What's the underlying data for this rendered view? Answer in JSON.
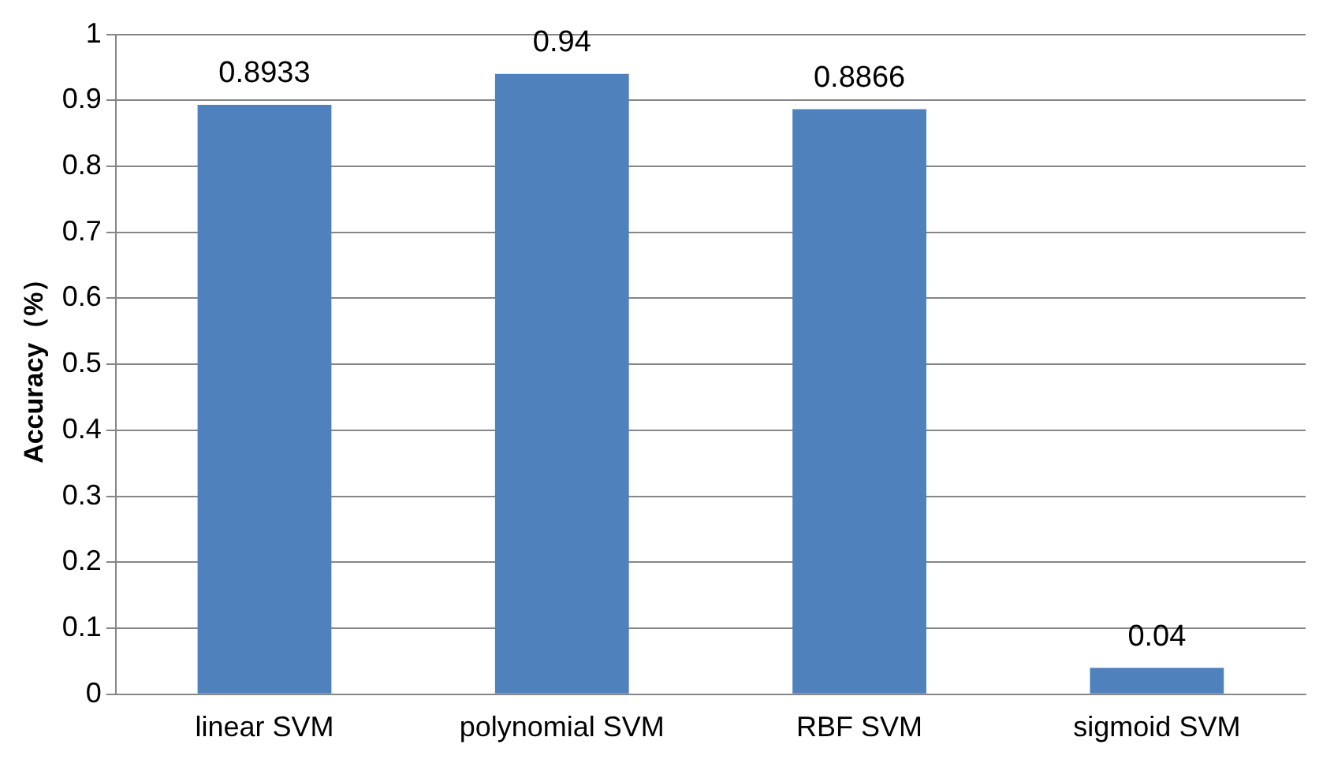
{
  "chart_data": {
    "type": "bar",
    "ylabel": "Accuracy（%）",
    "categories": [
      "linear SVM",
      "polynomial SVM",
      "RBF SVM",
      "sigmoid SVM"
    ],
    "values": [
      0.8933,
      0.94,
      0.8866,
      0.04
    ],
    "color": "#4f81bd",
    "ylim": [
      0,
      1
    ],
    "yticks": [
      0,
      0.1,
      0.2,
      0.3,
      0.4,
      0.5,
      0.6,
      0.7,
      0.8,
      0.9,
      1
    ],
    "grid": "y",
    "data_labels": true,
    "legend": false
  }
}
